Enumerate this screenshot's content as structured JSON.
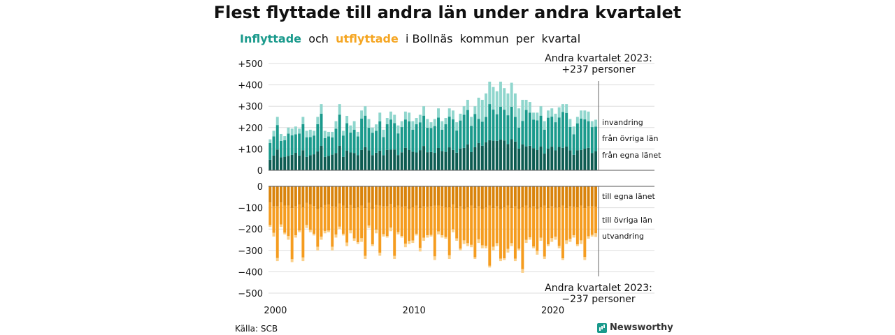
{
  "title": "Flest flyttade till andra län under andra kvartalet",
  "subtitle": {
    "in_label": "Inflyttade",
    "connector": "och",
    "out_label": "utflyttade",
    "rest": "i Bollnäs  kommun  per  kvartal"
  },
  "source": "Källa: SCB",
  "brand": "Newsworthy",
  "colors": {
    "in_own": "#0d5c52",
    "in_other": "#1a9a8c",
    "in_abroad": "#8fd6cd",
    "out_own": "#d9830b",
    "out_other": "#f59c1f",
    "out_abroad": "#fbd08a"
  },
  "chart_data": {
    "type": "bar",
    "x_start": 1999.5,
    "x_end": 2023.25,
    "x_ticks": [
      "2000",
      "2010",
      "2020"
    ],
    "top_y_ticks": [
      "0",
      "+100",
      "+200",
      "+300",
      "+400",
      "+500"
    ],
    "bottom_y_ticks": [
      "0",
      "−100",
      "−200",
      "−300",
      "−400",
      "−500"
    ],
    "top_ylim": [
      0,
      500
    ],
    "bottom_ylim": [
      -500,
      0
    ],
    "series_top": [
      "från egna länet",
      "från övriga län",
      "invandring"
    ],
    "series_bottom": [
      "till egna länet",
      "till övriga län",
      "utvandring"
    ],
    "annotation_top": {
      "line1": "Andra kvartalet 2023:",
      "line2": "+237 personer"
    },
    "annotation_bottom": {
      "line1": "Andra kvartalet 2023:",
      "line2": "−237 personer"
    },
    "inflyttade_totals": [
      145,
      185,
      250,
      170,
      160,
      200,
      195,
      205,
      195,
      250,
      185,
      190,
      185,
      250,
      310,
      185,
      180,
      180,
      230,
      310,
      185,
      255,
      210,
      230,
      180,
      280,
      300,
      240,
      200,
      215,
      270,
      190,
      245,
      275,
      260,
      210,
      230,
      275,
      270,
      230,
      245,
      260,
      300,
      240,
      225,
      240,
      290,
      230,
      245,
      290,
      280,
      225,
      265,
      300,
      330,
      250,
      300,
      340,
      330,
      360,
      415,
      390,
      370,
      415,
      385,
      360,
      410,
      360,
      290,
      330,
      330,
      320,
      270,
      270,
      300,
      230,
      280,
      290,
      265,
      295,
      310,
      310,
      240,
      205,
      250,
      280,
      280,
      275,
      230,
      237
    ],
    "utflyttade_totals": [
      -190,
      -235,
      -350,
      -190,
      -225,
      -250,
      -355,
      -240,
      -215,
      -350,
      -195,
      -215,
      -230,
      -300,
      -250,
      -220,
      -215,
      -300,
      -240,
      -200,
      -230,
      -280,
      -220,
      -255,
      -270,
      -260,
      -340,
      -195,
      -280,
      -220,
      -325,
      -235,
      -240,
      -210,
      -340,
      -225,
      -240,
      -285,
      -270,
      -265,
      -230,
      -305,
      -255,
      -240,
      -235,
      -345,
      -225,
      -240,
      -245,
      -340,
      -215,
      -255,
      -300,
      -270,
      -280,
      -285,
      -340,
      -265,
      -290,
      -290,
      -380,
      -300,
      -280,
      -350,
      -345,
      -310,
      -280,
      -350,
      -300,
      -405,
      -265,
      -250,
      -290,
      -320,
      -255,
      -340,
      -280,
      -260,
      -250,
      -290,
      -345,
      -270,
      -260,
      -240,
      -280,
      -270,
      -345,
      -245,
      -235,
      -237
    ]
  }
}
